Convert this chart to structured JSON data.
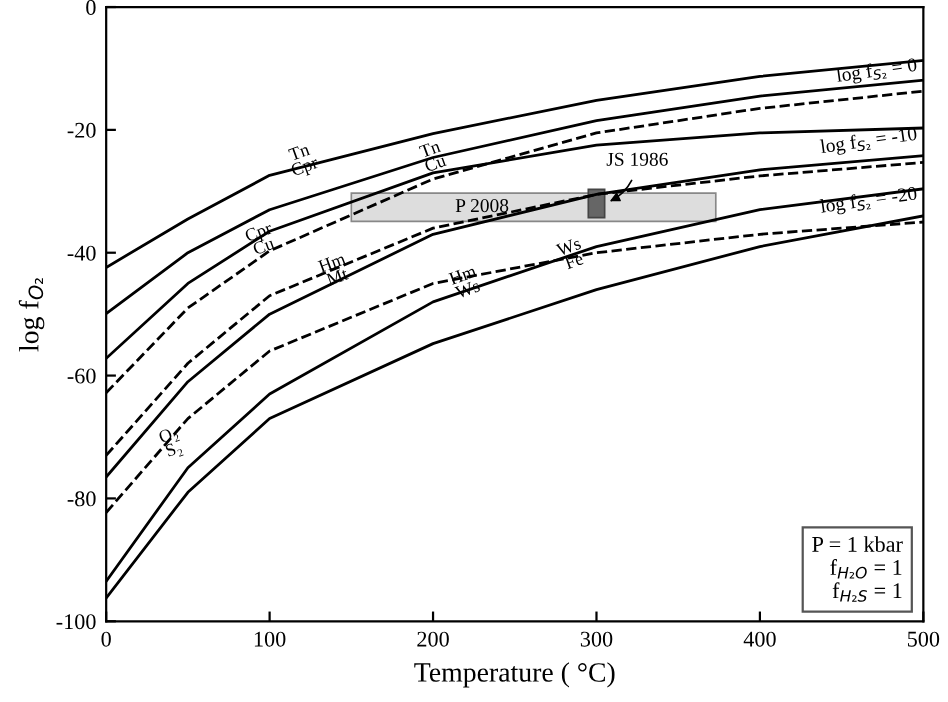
{
  "chart_data": {
    "type": "line",
    "xlabel": "Temperature ( °C)",
    "ylabel": "log f$_{O₂}$",
    "xlim": [
      0,
      500
    ],
    "ylim": [
      -100,
      0
    ],
    "xticks": [
      0,
      100,
      200,
      300,
      400,
      500
    ],
    "yticks": [
      -100,
      -80,
      -60,
      -40,
      -20,
      0
    ],
    "grid": false,
    "series": [
      {
        "color": "#000000",
        "line_style": "solid",
        "x": [
          0,
          50,
          100,
          200,
          300,
          400,
          500
        ],
        "values": [
          -42.4,
          -34.5,
          -27.4,
          -20.6,
          -15.2,
          -11.3,
          -8.7
        ]
      },
      {
        "color": "#000000",
        "line_style": "solid",
        "x": [
          0,
          50,
          100,
          200,
          300,
          400,
          500
        ],
        "values": [
          -49.9,
          -40,
          -33,
          -24.5,
          -18.5,
          -14.5,
          -11.9
        ]
      },
      {
        "color": "#000000",
        "line_style": "solid",
        "x": [
          0,
          50,
          100,
          200,
          300,
          400,
          500
        ],
        "values": [
          -57.2,
          -45,
          -36.5,
          -27,
          -22.5,
          -20.5,
          -19.7
        ]
      },
      {
        "name": "log f$_{S₂}$ = 0",
        "color": "#000000",
        "line_style": "dashed",
        "x": [
          0,
          50,
          100,
          200,
          300,
          400,
          500
        ],
        "values": [
          -62.8,
          -49,
          -39.7,
          -28,
          -20.5,
          -16.5,
          -13.7
        ]
      },
      {
        "name": "log f$_{S₂}$ = -10",
        "color": "#000000",
        "line_style": "dashed",
        "x": [
          0,
          50,
          100,
          200,
          300,
          400,
          500
        ],
        "values": [
          -73,
          -58,
          -47,
          -36,
          -30.5,
          -27.5,
          -25.3
        ]
      },
      {
        "color": "#000000",
        "line_style": "solid",
        "x": [
          0,
          50,
          100,
          200,
          300,
          400,
          500
        ],
        "values": [
          -76.5,
          -61,
          -50,
          -37,
          -30.5,
          -26.5,
          -24.2
        ]
      },
      {
        "name": "log f$_{S₂}$ = -20",
        "color": "#000000",
        "line_style": "dashed",
        "x": [
          0,
          50,
          100,
          200,
          300,
          400,
          500
        ],
        "values": [
          -82.3,
          -67,
          -56,
          -45,
          -40,
          -37,
          -35
        ]
      },
      {
        "color": "#000000",
        "line_style": "solid",
        "x": [
          0,
          50,
          100,
          200,
          300,
          400,
          500
        ],
        "values": [
          -93.5,
          -75,
          -63,
          -48,
          -39,
          -33,
          -29.6
        ]
      },
      {
        "color": "#000000",
        "line_style": "solid",
        "x": [
          0,
          50,
          100,
          200,
          300,
          400,
          500
        ],
        "values": [
          -96.2,
          -79,
          -67,
          -54.8,
          -46,
          -39,
          -34
        ]
      }
    ],
    "annotations": [
      {
        "text": "Tn\nCpr",
        "x": 120,
        "y": -25
      },
      {
        "text": "Tn\nCu",
        "x": 200,
        "y": -24.5
      },
      {
        "text": "Cpr\nCu",
        "x": 95,
        "y": -38
      },
      {
        "text": "Hm\nMt",
        "x": 140,
        "y": -43
      },
      {
        "text": "Hm\nWs",
        "x": 220,
        "y": -45
      },
      {
        "text": "Ws\nFe",
        "x": 285,
        "y": -40.4
      },
      {
        "text": "O₂\nS₂",
        "x": 40,
        "y": -71
      },
      {
        "text": "P 2008",
        "x": 230,
        "y": -32.6
      },
      {
        "text": "JS 1986",
        "x": 305,
        "y": -32
      },
      "P = 1 kbar\nf$_{H₂O}$ = 1\nf$_{H₂S}$ = 1"
    ]
  }
}
